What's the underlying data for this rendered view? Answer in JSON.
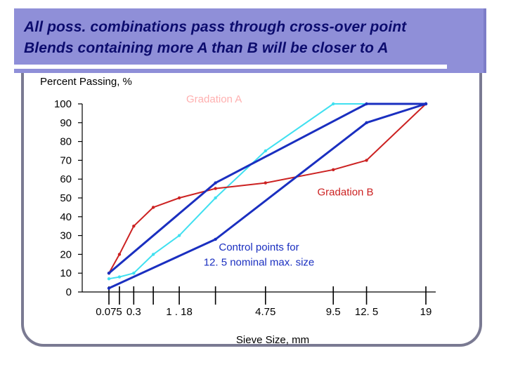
{
  "slide": {
    "title_lines": [
      "All poss. combinations pass through cross-over point",
      "Blends containing more A than B will be closer to A"
    ]
  },
  "colors": {
    "title_bar": "#8f8fd8",
    "title_text": "#0c0c6e",
    "frame": "#7a7a92"
  },
  "chart_data": {
    "type": "line",
    "ylabel": "Percent Passing, %",
    "xlabel": "Sieve Size, mm",
    "x_scale": "0.45 power",
    "ylim": [
      0,
      100
    ],
    "yticks": [
      0,
      10,
      20,
      30,
      40,
      50,
      60,
      70,
      80,
      90,
      100
    ],
    "xticks": [
      {
        "value": 0.075,
        "label": "0.075"
      },
      {
        "value": 0.15,
        "label": ""
      },
      {
        "value": 0.3,
        "label": "0.3"
      },
      {
        "value": 0.6,
        "label": ""
      },
      {
        "value": 1.18,
        "label": "1 . 18"
      },
      {
        "value": 2.36,
        "label": ""
      },
      {
        "value": 4.75,
        "label": "4.75"
      },
      {
        "value": 9.5,
        "label": "9.5"
      },
      {
        "value": 12.5,
        "label": "12. 5"
      },
      {
        "value": 19,
        "label": "19"
      }
    ],
    "grid": false,
    "series": [
      {
        "name": "Gradation A",
        "color": "#40e0f0",
        "x": [
          0.075,
          0.15,
          0.3,
          0.6,
          1.18,
          2.36,
          4.75,
          9.5,
          19
        ],
        "y": [
          7,
          8,
          10,
          20,
          30,
          50,
          75,
          100,
          100
        ]
      },
      {
        "name": "Gradation B",
        "color": "#cc2222",
        "x": [
          0.075,
          0.15,
          0.3,
          0.6,
          1.18,
          2.36,
          4.75,
          9.5,
          12.5,
          19
        ],
        "y": [
          10,
          20,
          35,
          45,
          50,
          55,
          58,
          65,
          70,
          100
        ]
      },
      {
        "name": "",
        "color": "#1a2fc0",
        "x": [
          0.075,
          2.36,
          12.5,
          19
        ],
        "y": [
          10,
          58,
          100,
          100
        ]
      },
      {
        "name": "",
        "color": "#1a2fc0",
        "x": [
          0.075,
          2.36,
          12.5,
          19
        ],
        "y": [
          2,
          28,
          90,
          100
        ]
      }
    ],
    "annotations": [
      {
        "text": "Gradation  A",
        "color": "#ffb0b0",
        "anchor_x": 2.36,
        "anchor_y": 100
      },
      {
        "text": "Gradation  B",
        "color": "#cc2222",
        "anchor_x": 12.5,
        "anchor_y": 55
      },
      {
        "text": "Control points for",
        "color": "#1a2fc0",
        "anchor_x": 6.3,
        "anchor_y": 22
      },
      {
        "text": "12. 5 nominal max. size",
        "color": "#1a2fc0",
        "anchor_x": 6.3,
        "anchor_y": 14
      }
    ]
  }
}
